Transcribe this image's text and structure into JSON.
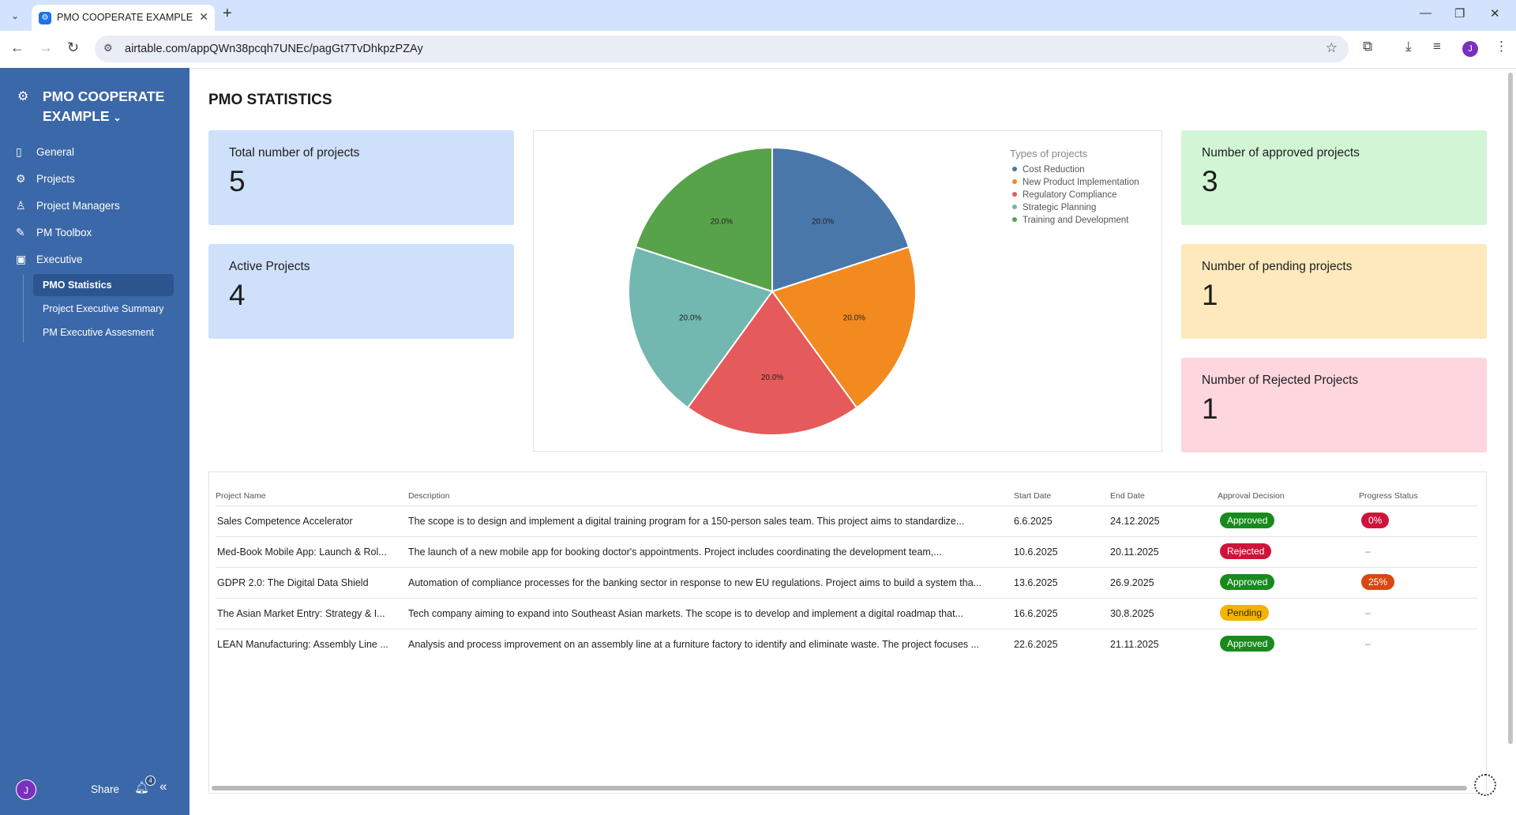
{
  "browser": {
    "tab_title": "PMO COOPERATE EXAMPLE - Airtable",
    "url": "airtable.com/appQWn38pcqh7UNEc/pagGt7TvDhkpzPZAy",
    "profile_initial": "J"
  },
  "sidebar": {
    "app_name": "PMO COOPERATE EXAMPLE",
    "nav": [
      {
        "label": "General",
        "icon": "book-icon"
      },
      {
        "label": "Projects",
        "icon": "cog-icon"
      },
      {
        "label": "Project Managers",
        "icon": "person-icon"
      },
      {
        "label": "PM Toolbox",
        "icon": "wrench-icon"
      },
      {
        "label": "Executive",
        "icon": "briefcase-icon"
      }
    ],
    "sub_items": [
      {
        "label": "PMO Statistics",
        "active": true
      },
      {
        "label": "Project Executive Summary",
        "active": false
      },
      {
        "label": "PM Executive Assesment",
        "active": false
      }
    ],
    "user_initial": "J",
    "share_label": "Share",
    "notification_count": "4"
  },
  "page": {
    "title": "PMO STATISTICS"
  },
  "cards": {
    "total": {
      "label": "Total number of projects",
      "value": "5",
      "color": "#cfe0fa"
    },
    "active": {
      "label": "Active Projects",
      "value": "4",
      "color": "#cfe0fa"
    },
    "approved": {
      "label": "Number of approved projects",
      "value": "3",
      "color": "#d2f5d6"
    },
    "pending": {
      "label": "Number of pending projects",
      "value": "1",
      "color": "#fde9bc"
    },
    "rejected": {
      "label": "Number of Rejected Projects",
      "value": "1",
      "color": "#fdd6de"
    }
  },
  "chart_data": {
    "type": "pie",
    "legend_title": "Types of projects",
    "legend_position": "top-right",
    "categories": [
      "Cost Reduction",
      "New Product Implementation",
      "Regulatory Compliance",
      "Strategic Planning",
      "Training and Development"
    ],
    "values": [
      20.0,
      20.0,
      20.0,
      20.0,
      20.0
    ],
    "labels": [
      "20.0%",
      "20.0%",
      "20.0%",
      "20.0%",
      "20.0%"
    ],
    "colors": [
      "#4a77aa",
      "#f28a1f",
      "#e55a5a",
      "#72b7b0",
      "#57a34a"
    ]
  },
  "table": {
    "headers": [
      "Project Name",
      "Description",
      "Start Date",
      "End Date",
      "Approval Decision",
      "Progress Status"
    ],
    "rows": [
      {
        "name": "Sales Competence Accelerator",
        "description": "The scope is to design and implement a digital training program for a 150-person sales team. This project aims to standardize...",
        "start": "6.6.2025",
        "end": "24.12.2025",
        "decision": "Approved",
        "decision_color": "#188a1e",
        "progress": "0%",
        "progress_color": "#d0133a"
      },
      {
        "name": "Med-Book Mobile App: Launch & Rol...",
        "description": "The launch of a new mobile app for booking doctor's appointments. Project includes coordinating the development team,...",
        "start": "10.6.2025",
        "end": "20.11.2025",
        "decision": "Rejected",
        "decision_color": "#d0133a",
        "progress": "–",
        "progress_color": ""
      },
      {
        "name": "GDPR 2.0: The Digital Data Shield",
        "description": "Automation of compliance processes for the banking sector in response to new EU regulations. Project aims to build a system tha...",
        "start": "13.6.2025",
        "end": "26.9.2025",
        "decision": "Approved",
        "decision_color": "#188a1e",
        "progress": "25%",
        "progress_color": "#d9480f"
      },
      {
        "name": "The Asian Market Entry: Strategy & I...",
        "description": "Tech company aiming to expand into Southeast Asian markets. The scope is to develop and implement a digital roadmap that...",
        "start": "16.6.2025",
        "end": "30.8.2025",
        "decision": "Pending",
        "decision_color": "#f2b400",
        "progress": "–",
        "progress_color": ""
      },
      {
        "name": "LEAN Manufacturing: Assembly Line ...",
        "description": "Analysis and process improvement on an assembly line at a furniture factory to identify and eliminate waste. The project focuses ...",
        "start": "22.6.2025",
        "end": "21.11.2025",
        "decision": "Approved",
        "decision_color": "#188a1e",
        "progress": "–",
        "progress_color": ""
      }
    ]
  }
}
